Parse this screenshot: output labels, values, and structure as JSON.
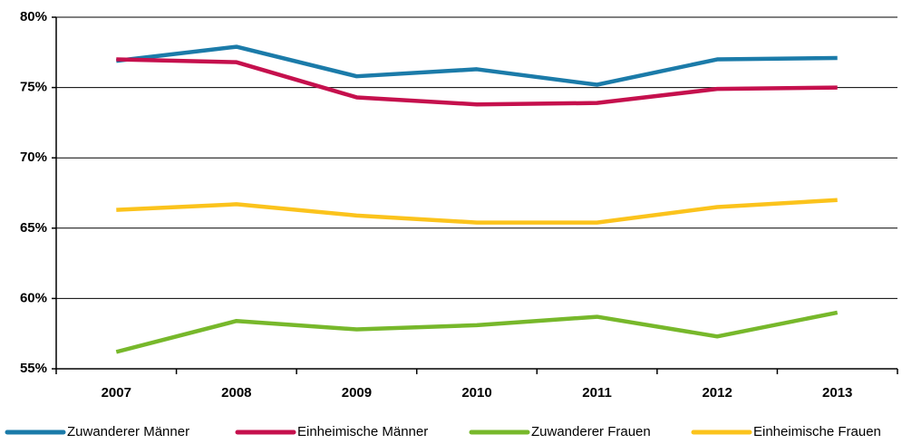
{
  "chart_data": {
    "type": "line",
    "categories": [
      "2007",
      "2008",
      "2009",
      "2010",
      "2011",
      "2012",
      "2013"
    ],
    "series": [
      {
        "name": "Zuwanderer Männer",
        "color": "#1b7ba9",
        "values": [
          76.9,
          77.9,
          75.8,
          76.3,
          75.2,
          77.0,
          77.1
        ]
      },
      {
        "name": "Einheimische Männer",
        "color": "#c5104d",
        "values": [
          77.0,
          76.8,
          74.3,
          73.8,
          73.9,
          74.9,
          75.0
        ]
      },
      {
        "name": "Zuwanderer Frauen",
        "color": "#77b82b",
        "values": [
          56.2,
          58.4,
          57.8,
          58.1,
          58.7,
          57.3,
          59.0
        ]
      },
      {
        "name": "Einheimische Frauen",
        "color": "#fbc31c",
        "values": [
          66.3,
          66.7,
          65.9,
          65.4,
          65.4,
          66.5,
          67.0
        ]
      }
    ],
    "ylim": [
      55,
      80
    ],
    "yticks": [
      {
        "value": 55,
        "label": "55%"
      },
      {
        "value": 60,
        "label": "60%"
      },
      {
        "value": 65,
        "label": "65%"
      },
      {
        "value": 70,
        "label": "70%"
      },
      {
        "value": 75,
        "label": "75%"
      },
      {
        "value": 80,
        "label": "80%"
      }
    ],
    "grid": true,
    "legend": "bottom"
  }
}
